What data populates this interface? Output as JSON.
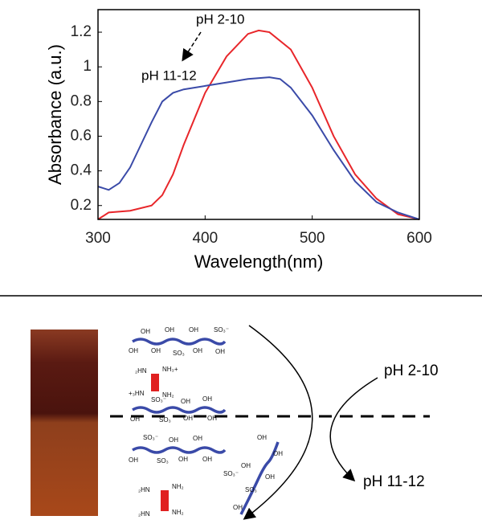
{
  "chart_data": {
    "type": "line",
    "xlabel": "Wavelength(nm)",
    "ylabel": "Absorbance (a.u.)",
    "xlim": [
      300,
      600
    ],
    "xticks": [
      300,
      400,
      500,
      600
    ],
    "ylim": [
      0.12,
      1.33
    ],
    "yticks": [
      0.2,
      0.4,
      0.6,
      0.8,
      1,
      1.2
    ],
    "annotations": [
      "pH 2-10",
      "pH 11-12"
    ],
    "series": [
      {
        "color": "#e8262a",
        "x": [
          300,
          310,
          330,
          350,
          360,
          370,
          380,
          400,
          420,
          440,
          450,
          460,
          480,
          500,
          520,
          540,
          560,
          580,
          600
        ],
        "values": [
          0.12,
          0.16,
          0.17,
          0.2,
          0.26,
          0.38,
          0.55,
          0.85,
          1.06,
          1.19,
          1.21,
          1.2,
          1.1,
          0.88,
          0.6,
          0.38,
          0.24,
          0.15,
          0.12
        ]
      },
      {
        "color": "#3a4aa8",
        "x": [
          300,
          310,
          320,
          330,
          340,
          350,
          360,
          370,
          380,
          400,
          420,
          440,
          460,
          470,
          480,
          500,
          520,
          540,
          560,
          580,
          600
        ],
        "values": [
          0.31,
          0.29,
          0.33,
          0.42,
          0.55,
          0.68,
          0.8,
          0.85,
          0.87,
          0.89,
          0.91,
          0.93,
          0.94,
          0.93,
          0.88,
          0.72,
          0.52,
          0.34,
          0.22,
          0.16,
          0.12
        ]
      }
    ]
  },
  "diagram": {
    "states": [
      "pH 2-10",
      "pH 11-12"
    ],
    "chem_labels": [
      "OH",
      "OH",
      "OH",
      "SO₃⁻",
      "OH",
      "OH",
      "SO₃",
      "OH",
      "OH",
      "₂HN",
      "NH₃+",
      "+₃HN",
      "NH₂",
      "SO₃⁻",
      "OH",
      "OH",
      "OH",
      "SO₃",
      "OH",
      "OH",
      "SO₃⁻",
      "OH",
      "OH",
      "OH",
      "SO₃",
      "OH",
      "OH",
      "₂HN",
      "NH₂",
      "₂HN",
      "NH₂",
      "OH",
      "OH",
      "SO₃⁻",
      "SO₃",
      "OH",
      "OH",
      "OH"
    ]
  }
}
